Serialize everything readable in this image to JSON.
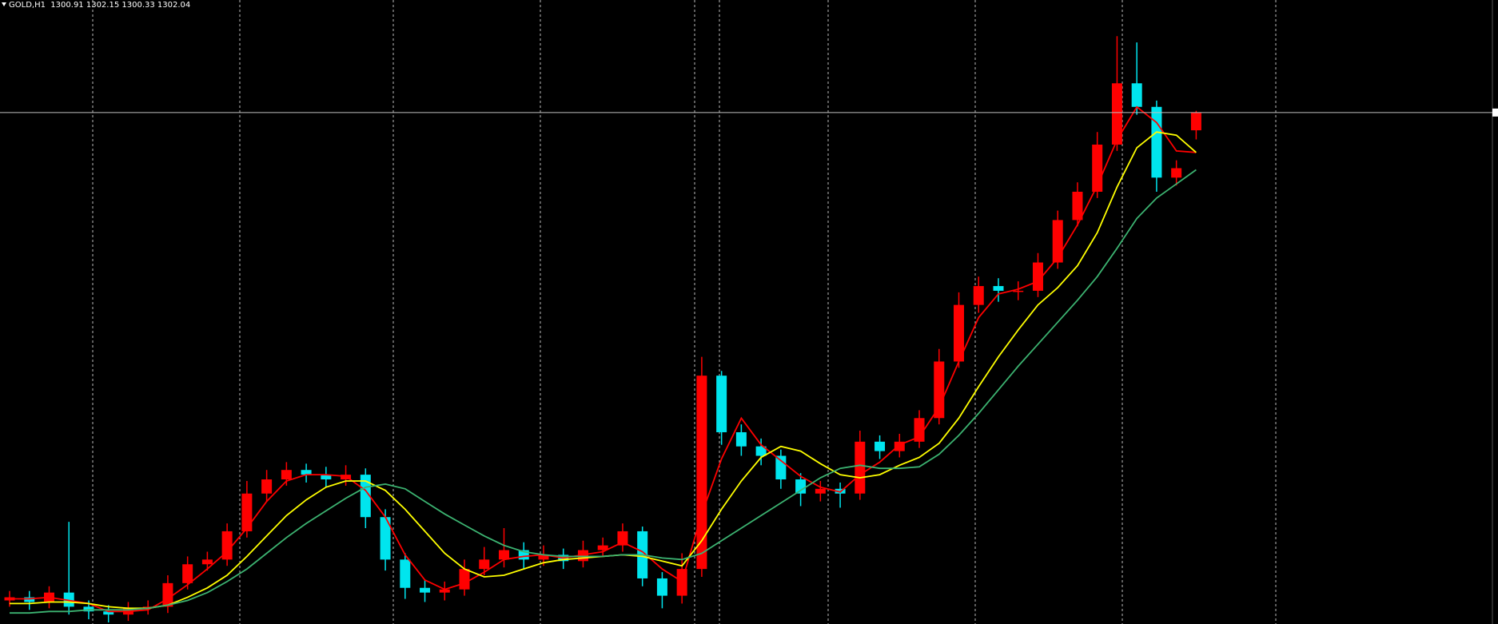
{
  "chart_data": {
    "type": "candlestick",
    "title": "GOLD,H1  1300.91 1302.15 1300.33 1302.04",
    "up_color": "#ff0000",
    "down_color": "#00e5ee",
    "open": [
      1271.0,
      1271.2,
      1270.9,
      1271.5,
      1270.6,
      1270.3,
      1270.1,
      1270.5,
      1270.6,
      1272.1,
      1273.3,
      1273.6,
      1275.4,
      1277.8,
      1278.7,
      1279.3,
      1279.0,
      1278.7,
      1279.0,
      1276.3,
      1273.6,
      1271.8,
      1271.5,
      1271.7,
      1273.0,
      1273.6,
      1274.2,
      1273.6,
      1273.9,
      1273.5,
      1274.2,
      1274.5,
      1275.4,
      1272.4,
      1271.3,
      1273.0,
      1285.3,
      1281.7,
      1280.8,
      1280.2,
      1278.7,
      1277.8,
      1278.1,
      1277.8,
      1281.1,
      1280.5,
      1281.1,
      1282.6,
      1286.2,
      1289.8,
      1291.0,
      1290.7,
      1290.7,
      1292.5,
      1295.2,
      1297.0,
      1300.0,
      1303.9,
      1302.4,
      1297.9,
      1300.91
    ],
    "high": [
      1271.6,
      1271.6,
      1271.9,
      1276.0,
      1271.0,
      1270.7,
      1270.9,
      1271.0,
      1272.6,
      1273.8,
      1274.1,
      1275.9,
      1278.6,
      1279.3,
      1279.8,
      1279.7,
      1279.5,
      1279.6,
      1279.4,
      1276.8,
      1274.0,
      1272.3,
      1272.2,
      1273.6,
      1274.4,
      1275.6,
      1274.7,
      1274.5,
      1274.3,
      1274.8,
      1275.0,
      1275.9,
      1275.7,
      1272.8,
      1274.0,
      1286.5,
      1285.6,
      1282.2,
      1281.3,
      1280.6,
      1279.1,
      1278.6,
      1278.5,
      1281.8,
      1281.5,
      1281.6,
      1283.1,
      1287.0,
      1290.6,
      1291.6,
      1291.5,
      1291.3,
      1293.1,
      1295.8,
      1297.6,
      1300.8,
      1306.9,
      1306.5,
      1302.8,
      1299.0,
      1302.15
    ],
    "low": [
      1270.6,
      1270.4,
      1270.5,
      1270.1,
      1269.8,
      1269.6,
      1269.7,
      1270.1,
      1270.2,
      1271.7,
      1272.9,
      1273.2,
      1275.0,
      1277.3,
      1278.3,
      1278.5,
      1278.2,
      1278.3,
      1275.6,
      1272.9,
      1271.1,
      1270.9,
      1271.0,
      1271.3,
      1272.6,
      1273.1,
      1273.0,
      1273.2,
      1273.0,
      1273.1,
      1273.8,
      1274.1,
      1271.9,
      1270.5,
      1270.8,
      1272.5,
      1280.9,
      1280.2,
      1279.6,
      1278.1,
      1277.0,
      1277.3,
      1276.9,
      1277.4,
      1280.0,
      1280.1,
      1280.7,
      1282.2,
      1285.8,
      1289.3,
      1290.0,
      1290.1,
      1290.3,
      1292.1,
      1294.8,
      1296.6,
      1299.6,
      1301.9,
      1297.0,
      1297.4,
      1300.33
    ],
    "close": [
      1271.2,
      1270.9,
      1271.5,
      1270.6,
      1270.3,
      1270.1,
      1270.5,
      1270.6,
      1272.1,
      1273.3,
      1273.6,
      1275.4,
      1277.8,
      1278.7,
      1279.3,
      1279.0,
      1278.7,
      1279.0,
      1276.3,
      1273.6,
      1271.8,
      1271.5,
      1271.7,
      1273.0,
      1273.6,
      1274.2,
      1273.6,
      1273.9,
      1273.5,
      1274.2,
      1274.5,
      1275.4,
      1272.4,
      1271.3,
      1273.0,
      1285.3,
      1281.7,
      1280.8,
      1280.2,
      1278.7,
      1277.8,
      1278.1,
      1277.8,
      1281.1,
      1280.5,
      1281.1,
      1282.6,
      1286.2,
      1289.8,
      1291.0,
      1290.7,
      1290.7,
      1292.5,
      1295.2,
      1297.0,
      1300.0,
      1303.9,
      1302.4,
      1297.9,
      1298.5,
      1302.04
    ],
    "moving_averages": [
      {
        "color": "#ff0000",
        "values": [
          1271.1,
          1271.1,
          1271.2,
          1271.0,
          1270.8,
          1270.3,
          1270.3,
          1270.4,
          1271.1,
          1272.0,
          1273.0,
          1274.1,
          1275.6,
          1277.3,
          1278.6,
          1279.0,
          1279.0,
          1278.9,
          1278.0,
          1276.3,
          1273.9,
          1272.3,
          1271.7,
          1272.1,
          1272.8,
          1273.6,
          1273.8,
          1273.9,
          1273.7,
          1273.9,
          1274.1,
          1274.7,
          1274.1,
          1273.0,
          1272.2,
          1276.5,
          1280.0,
          1282.6,
          1280.9,
          1279.9,
          1278.9,
          1278.2,
          1277.9,
          1279.0,
          1279.8,
          1280.9,
          1281.4,
          1283.3,
          1286.2,
          1289.0,
          1290.5,
          1290.8,
          1291.3,
          1292.8,
          1294.9,
          1297.4,
          1300.3,
          1302.4,
          1301.4,
          1299.6,
          1299.5
        ]
      },
      {
        "color": "#ffff00",
        "values": [
          1270.8,
          1270.8,
          1270.9,
          1270.9,
          1270.8,
          1270.6,
          1270.5,
          1270.5,
          1270.7,
          1271.2,
          1271.8,
          1272.6,
          1273.8,
          1275.1,
          1276.4,
          1277.4,
          1278.2,
          1278.6,
          1278.6,
          1278.0,
          1276.8,
          1275.4,
          1274.0,
          1273.0,
          1272.5,
          1272.6,
          1273.0,
          1273.4,
          1273.6,
          1273.7,
          1273.8,
          1273.9,
          1273.8,
          1273.5,
          1273.2,
          1274.8,
          1276.8,
          1278.6,
          1280.1,
          1280.8,
          1280.5,
          1279.7,
          1279.0,
          1278.8,
          1279.0,
          1279.6,
          1280.1,
          1281.0,
          1282.6,
          1284.6,
          1286.5,
          1288.2,
          1289.8,
          1290.9,
          1292.3,
          1294.4,
          1297.3,
          1299.8,
          1300.8,
          1300.6,
          1299.5
        ]
      },
      {
        "color": "#3cb371",
        "values": [
          1270.2,
          1270.2,
          1270.3,
          1270.3,
          1270.4,
          1270.4,
          1270.4,
          1270.5,
          1270.7,
          1271.0,
          1271.5,
          1272.2,
          1273.0,
          1274.0,
          1275.0,
          1275.9,
          1276.7,
          1277.5,
          1278.2,
          1278.4,
          1278.1,
          1277.3,
          1276.5,
          1275.8,
          1275.1,
          1274.5,
          1274.1,
          1273.9,
          1273.8,
          1273.8,
          1273.8,
          1273.9,
          1273.9,
          1273.7,
          1273.6,
          1274.0,
          1274.8,
          1275.6,
          1276.4,
          1277.2,
          1278.0,
          1278.8,
          1279.4,
          1279.6,
          1279.4,
          1279.4,
          1279.5,
          1280.3,
          1281.5,
          1282.9,
          1284.4,
          1285.9,
          1287.3,
          1288.7,
          1290.1,
          1291.6,
          1293.4,
          1295.3,
          1296.6,
          1297.5,
          1298.4
        ]
      }
    ],
    "bid_line": 1302.04,
    "ylim": [
      1269.5,
      1309.2
    ]
  }
}
